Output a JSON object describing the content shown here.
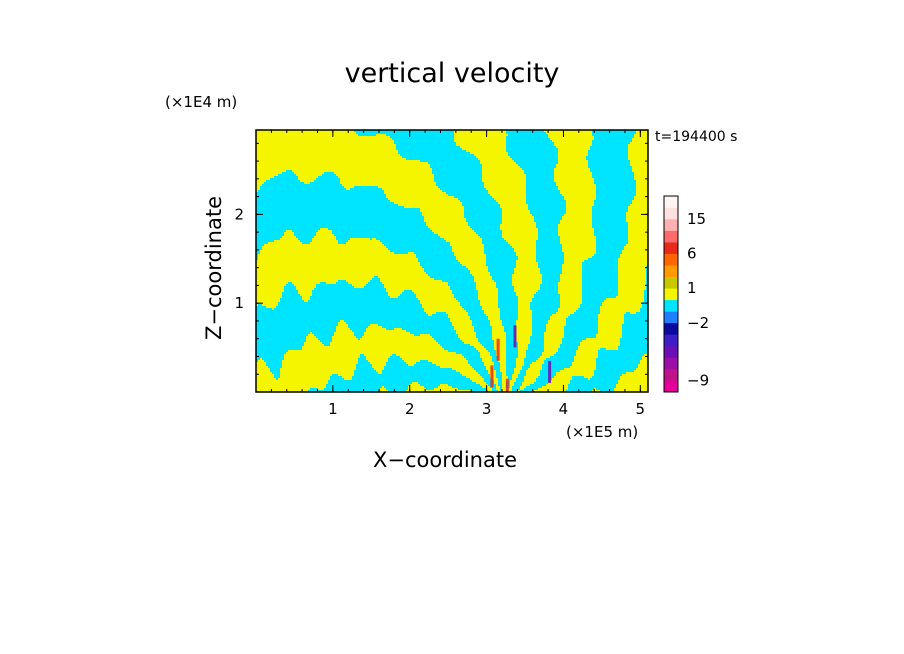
{
  "chart_data": {
    "type": "heatmap",
    "title": "vertical velocity",
    "xlabel": "X−coordinate",
    "ylabel": "Z−coordinate",
    "x_unit": "(×1E5 m)",
    "z_unit": "(×1E4 m)",
    "time_label": "t=194400 s",
    "xlim": [
      0,
      5.1
    ],
    "ylim": [
      0,
      2.95
    ],
    "x_ticks": [
      "1",
      "2",
      "3",
      "4",
      "5"
    ],
    "x_tick_values": [
      1,
      2,
      3,
      4,
      5
    ],
    "y_ticks": [
      "1",
      "2"
    ],
    "y_tick_values": [
      1,
      2
    ],
    "colorbar": {
      "colors": [
        "#e6009a",
        "#c0128a",
        "#9b0ea8",
        "#6a0fb5",
        "#3c1fc8",
        "#0a0aa0",
        "#1f7fff",
        "#00e5ff",
        "#f5f500",
        "#c8c800",
        "#ff9900",
        "#ff6600",
        "#e82a1a",
        "#ff6a6a",
        "#ffb0b0",
        "#ffe0e0",
        "#fff4f4"
      ],
      "tick_labels": [
        "−9",
        "−2",
        "1",
        "6",
        "15"
      ],
      "tick_at_band": [
        1,
        6,
        9,
        12,
        15
      ]
    },
    "fields": {
      "background_color": "#00e5ff",
      "foreground_color": "#f5f500",
      "background_meaning": "negative (downward) vertical velocity",
      "foreground_meaning": "positive (upward) vertical velocity",
      "pattern": "wave-like stripes spreading upward from a source near x = 3.0–3.5 E5 m"
    }
  }
}
